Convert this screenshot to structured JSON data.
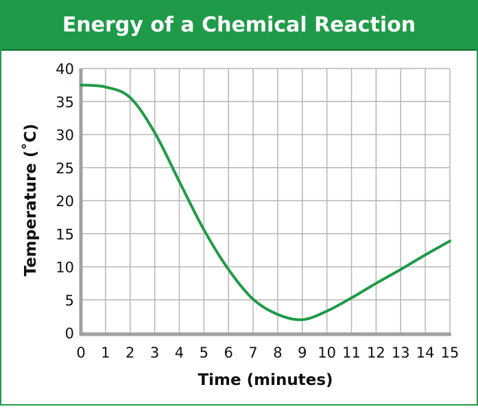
{
  "chart_data": {
    "type": "line",
    "title": "Energy of a Chemical Reaction",
    "xlabel": "Time (minutes)",
    "ylabel": "Temperature (˚C)",
    "xlim": [
      0,
      15
    ],
    "ylim": [
      0,
      40
    ],
    "xticks": [
      0,
      1,
      2,
      3,
      4,
      5,
      6,
      7,
      8,
      9,
      10,
      11,
      12,
      13,
      14,
      15
    ],
    "yticks": [
      0,
      5,
      10,
      15,
      20,
      25,
      30,
      35,
      40
    ],
    "grid": true,
    "line_color": "#1f9a48",
    "frame_color": "#1f9a48",
    "x": [
      0,
      1,
      2,
      3,
      4,
      5,
      6,
      7,
      8,
      9,
      10,
      11,
      12,
      13,
      14,
      15
    ],
    "y": [
      37.5,
      37.2,
      35.6,
      30.3,
      22.9,
      15.6,
      9.6,
      5.1,
      2.8,
      2.0,
      3.3,
      5.3,
      7.5,
      9.6,
      11.8,
      13.9
    ]
  }
}
